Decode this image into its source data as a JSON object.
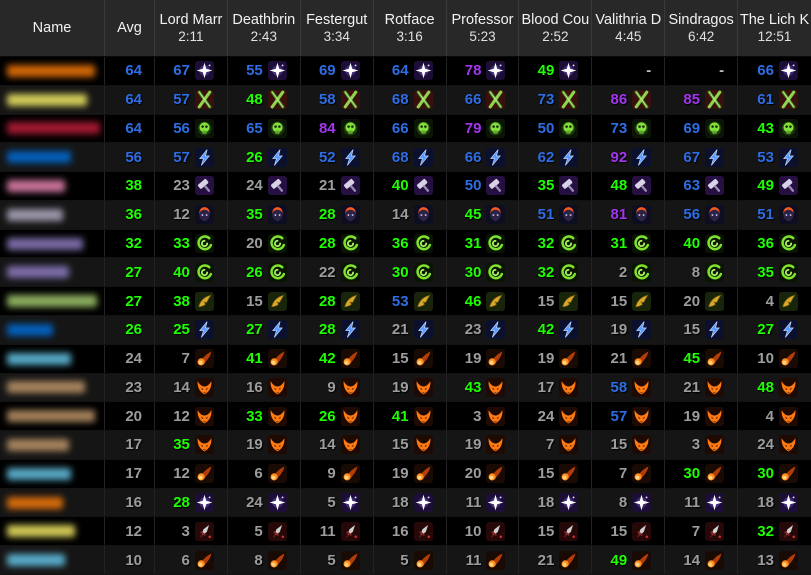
{
  "table": {
    "columns": [
      {
        "label": "Name",
        "time": ""
      },
      {
        "label": "Avg",
        "time": ""
      },
      {
        "label": "Lord Marr",
        "time": "2:11"
      },
      {
        "label": "Deathbrin",
        "time": "2:43"
      },
      {
        "label": "Festergut",
        "time": "3:34"
      },
      {
        "label": "Rotface",
        "time": "3:16"
      },
      {
        "label": "Professor",
        "time": "5:23"
      },
      {
        "label": "Blood Cou",
        "time": "2:52"
      },
      {
        "label": "Valithria D",
        "time": "4:45"
      },
      {
        "label": "Sindragos",
        "time": "6:42"
      },
      {
        "label": "The Lich K",
        "time": "12:51"
      }
    ],
    "rows": [
      {
        "class": "druid",
        "name_color": "#FF7D0A",
        "name_width": 88,
        "spec": "balance-druid",
        "avg": [
          64,
          "blue"
        ],
        "cells": [
          [
            67,
            "blue"
          ],
          [
            55,
            "blue"
          ],
          [
            69,
            "blue"
          ],
          [
            64,
            "blue"
          ],
          [
            78,
            "purple"
          ],
          [
            49,
            "green"
          ],
          [
            "-",
            "dash"
          ],
          [
            "-",
            "dash"
          ],
          [
            66,
            "blue"
          ]
        ]
      },
      {
        "class": "rogue",
        "name_color": "#FFF569",
        "name_width": 80,
        "spec": "combat-rogue",
        "avg": [
          64,
          "blue"
        ],
        "cells": [
          [
            57,
            "blue"
          ],
          [
            48,
            "green"
          ],
          [
            58,
            "blue"
          ],
          [
            68,
            "blue"
          ],
          [
            66,
            "blue"
          ],
          [
            73,
            "blue"
          ],
          [
            86,
            "purple"
          ],
          [
            85,
            "purple"
          ],
          [
            61,
            "blue"
          ]
        ]
      },
      {
        "class": "death-knight",
        "name_color": "#C41F3B",
        "name_width": 96,
        "spec": "unholy-death-knight",
        "avg": [
          64,
          "blue"
        ],
        "cells": [
          [
            56,
            "blue"
          ],
          [
            65,
            "blue"
          ],
          [
            84,
            "purple"
          ],
          [
            66,
            "blue"
          ],
          [
            79,
            "purple"
          ],
          [
            50,
            "blue"
          ],
          [
            73,
            "blue"
          ],
          [
            69,
            "blue"
          ],
          [
            43,
            "green"
          ]
        ]
      },
      {
        "class": "shaman",
        "name_color": "#0070DE",
        "name_width": 64,
        "spec": "elemental-shaman",
        "avg": [
          56,
          "blue"
        ],
        "cells": [
          [
            57,
            "blue"
          ],
          [
            26,
            "green"
          ],
          [
            52,
            "blue"
          ],
          [
            68,
            "blue"
          ],
          [
            66,
            "blue"
          ],
          [
            62,
            "blue"
          ],
          [
            92,
            "purple"
          ],
          [
            67,
            "blue"
          ],
          [
            53,
            "blue"
          ]
        ]
      },
      {
        "class": "paladin",
        "name_color": "#F58CBA",
        "name_width": 58,
        "spec": "retribution-paladin",
        "avg": [
          38,
          "green"
        ],
        "cells": [
          [
            23,
            "gray"
          ],
          [
            24,
            "gray"
          ],
          [
            21,
            "gray"
          ],
          [
            40,
            "green"
          ],
          [
            50,
            "blue"
          ],
          [
            35,
            "green"
          ],
          [
            48,
            "green"
          ],
          [
            63,
            "blue"
          ],
          [
            49,
            "green"
          ]
        ]
      },
      {
        "class": "priest",
        "name_color": "#B9B2C9",
        "name_width": 56,
        "spec": "shadow-priest",
        "avg": [
          36,
          "green"
        ],
        "cells": [
          [
            12,
            "gray"
          ],
          [
            35,
            "green"
          ],
          [
            28,
            "green"
          ],
          [
            14,
            "gray"
          ],
          [
            45,
            "green"
          ],
          [
            51,
            "blue"
          ],
          [
            81,
            "purple"
          ],
          [
            56,
            "blue"
          ],
          [
            51,
            "blue"
          ]
        ]
      },
      {
        "class": "warlock",
        "name_color": "#9482C9",
        "name_width": 76,
        "spec": "affliction-warlock",
        "avg": [
          32,
          "green"
        ],
        "cells": [
          [
            33,
            "green"
          ],
          [
            20,
            "gray"
          ],
          [
            28,
            "green"
          ],
          [
            36,
            "green"
          ],
          [
            31,
            "green"
          ],
          [
            32,
            "green"
          ],
          [
            31,
            "green"
          ],
          [
            40,
            "green"
          ],
          [
            36,
            "green"
          ]
        ]
      },
      {
        "class": "warlock",
        "name_color": "#9482C9",
        "name_width": 62,
        "spec": "affliction-warlock",
        "avg": [
          27,
          "green"
        ],
        "cells": [
          [
            40,
            "green"
          ],
          [
            26,
            "green"
          ],
          [
            22,
            "gray"
          ],
          [
            30,
            "green"
          ],
          [
            30,
            "green"
          ],
          [
            32,
            "green"
          ],
          [
            2,
            "gray"
          ],
          [
            8,
            "gray"
          ],
          [
            35,
            "green"
          ]
        ]
      },
      {
        "class": "hunter",
        "name_color": "#ABD473",
        "name_width": 90,
        "spec": "marksmanship-hunter",
        "avg": [
          27,
          "green"
        ],
        "cells": [
          [
            38,
            "green"
          ],
          [
            15,
            "gray"
          ],
          [
            28,
            "green"
          ],
          [
            53,
            "blue"
          ],
          [
            46,
            "green"
          ],
          [
            15,
            "gray"
          ],
          [
            15,
            "gray"
          ],
          [
            20,
            "gray"
          ],
          [
            4,
            "gray"
          ]
        ]
      },
      {
        "class": "shaman",
        "name_color": "#0070DE",
        "name_width": 46,
        "spec": "elemental-shaman",
        "avg": [
          26,
          "green"
        ],
        "cells": [
          [
            25,
            "green"
          ],
          [
            27,
            "green"
          ],
          [
            28,
            "green"
          ],
          [
            21,
            "gray"
          ],
          [
            23,
            "gray"
          ],
          [
            42,
            "green"
          ],
          [
            19,
            "gray"
          ],
          [
            15,
            "gray"
          ],
          [
            27,
            "green"
          ]
        ]
      },
      {
        "class": "mage",
        "name_color": "#69CCF0",
        "name_width": 64,
        "spec": "fire-mage",
        "avg": [
          24,
          "gray"
        ],
        "cells": [
          [
            7,
            "gray"
          ],
          [
            41,
            "green"
          ],
          [
            42,
            "green"
          ],
          [
            15,
            "gray"
          ],
          [
            19,
            "gray"
          ],
          [
            19,
            "gray"
          ],
          [
            21,
            "gray"
          ],
          [
            45,
            "green"
          ],
          [
            10,
            "gray"
          ]
        ]
      },
      {
        "class": "warrior",
        "name_color": "#C79C6E",
        "name_width": 78,
        "spec": "fury-warrior",
        "avg": [
          23,
          "gray"
        ],
        "cells": [
          [
            14,
            "gray"
          ],
          [
            16,
            "gray"
          ],
          [
            9,
            "gray"
          ],
          [
            19,
            "gray"
          ],
          [
            43,
            "green"
          ],
          [
            17,
            "gray"
          ],
          [
            58,
            "blue"
          ],
          [
            21,
            "gray"
          ],
          [
            48,
            "green"
          ]
        ]
      },
      {
        "class": "warrior",
        "name_color": "#C79C6E",
        "name_width": 88,
        "spec": "fury-warrior",
        "avg": [
          20,
          "gray"
        ],
        "cells": [
          [
            12,
            "gray"
          ],
          [
            33,
            "green"
          ],
          [
            26,
            "green"
          ],
          [
            41,
            "green"
          ],
          [
            3,
            "gray"
          ],
          [
            24,
            "gray"
          ],
          [
            57,
            "blue"
          ],
          [
            19,
            "gray"
          ],
          [
            4,
            "gray"
          ]
        ]
      },
      {
        "class": "warrior",
        "name_color": "#C79C6E",
        "name_width": 62,
        "spec": "fury-warrior",
        "avg": [
          17,
          "gray"
        ],
        "cells": [
          [
            35,
            "green"
          ],
          [
            19,
            "gray"
          ],
          [
            14,
            "gray"
          ],
          [
            15,
            "gray"
          ],
          [
            19,
            "gray"
          ],
          [
            7,
            "gray"
          ],
          [
            15,
            "gray"
          ],
          [
            3,
            "gray"
          ],
          [
            24,
            "gray"
          ]
        ]
      },
      {
        "class": "mage",
        "name_color": "#69CCF0",
        "name_width": 64,
        "spec": "fire-mage",
        "avg": [
          17,
          "gray"
        ],
        "cells": [
          [
            12,
            "gray"
          ],
          [
            6,
            "gray"
          ],
          [
            9,
            "gray"
          ],
          [
            19,
            "gray"
          ],
          [
            20,
            "gray"
          ],
          [
            15,
            "gray"
          ],
          [
            7,
            "gray"
          ],
          [
            30,
            "green"
          ],
          [
            30,
            "green"
          ]
        ]
      },
      {
        "class": "druid",
        "name_color": "#FF7D0A",
        "name_width": 56,
        "spec": "balance-druid",
        "avg": [
          16,
          "gray"
        ],
        "cells": [
          [
            28,
            "green"
          ],
          [
            24,
            "gray"
          ],
          [
            5,
            "gray"
          ],
          [
            18,
            "gray"
          ],
          [
            11,
            "gray"
          ],
          [
            18,
            "gray"
          ],
          [
            8,
            "gray"
          ],
          [
            11,
            "gray"
          ],
          [
            18,
            "gray"
          ]
        ]
      },
      {
        "class": "rogue",
        "name_color": "#FFF569",
        "name_width": 68,
        "spec": "assassination-rogue",
        "avg": [
          12,
          "gray"
        ],
        "cells": [
          [
            3,
            "gray"
          ],
          [
            5,
            "gray"
          ],
          [
            11,
            "gray"
          ],
          [
            16,
            "gray"
          ],
          [
            10,
            "gray"
          ],
          [
            15,
            "gray"
          ],
          [
            15,
            "gray"
          ],
          [
            7,
            "gray"
          ],
          [
            32,
            "green"
          ]
        ]
      },
      {
        "class": "mage",
        "name_color": "#69CCF0",
        "name_width": 58,
        "spec": "fire-mage",
        "avg": [
          10,
          "gray"
        ],
        "cells": [
          [
            6,
            "gray"
          ],
          [
            8,
            "gray"
          ],
          [
            5,
            "gray"
          ],
          [
            5,
            "gray"
          ],
          [
            11,
            "gray"
          ],
          [
            21,
            "gray"
          ],
          [
            49,
            "green"
          ],
          [
            14,
            "gray"
          ],
          [
            13,
            "gray"
          ]
        ]
      }
    ]
  },
  "parse_colors": {
    "gray": "#9d9d9d",
    "green": "#1eff00",
    "blue": "#2f6de4",
    "purple": "#a335ee",
    "dash": "#bdbdbd"
  }
}
